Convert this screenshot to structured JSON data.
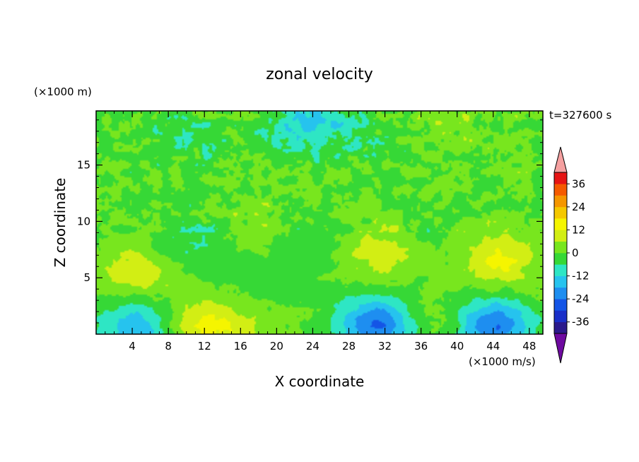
{
  "chart_data": {
    "type": "heatmap",
    "title": "zonal velocity",
    "xlabel": "X coordinate",
    "ylabel": "Z coordinate",
    "x_units": "(×1000 m/s)",
    "y_units": "(×1000 m)",
    "time_label": "t=327600 s",
    "xlim": [
      0,
      49.5
    ],
    "ylim": [
      0,
      19.8
    ],
    "x_ticks": [
      4,
      8,
      12,
      16,
      20,
      24,
      28,
      32,
      36,
      40,
      44,
      48
    ],
    "y_ticks": [
      5,
      10,
      15
    ],
    "colorbar": {
      "levels": [
        -42,
        -36,
        -30,
        -24,
        -18,
        -12,
        -6,
        0,
        6,
        12,
        18,
        24,
        30,
        36,
        42
      ],
      "tick_labels": [
        "36",
        "24",
        "12",
        "0",
        "-12",
        "-24",
        "-36"
      ],
      "tick_values": [
        36,
        24,
        12,
        0,
        -12,
        -24,
        -36
      ],
      "colors": [
        "#6e0aa0",
        "#2b1a8c",
        "#1a2fc8",
        "#1455e6",
        "#1e8ef0",
        "#26c3ee",
        "#2ee6c4",
        "#36d836",
        "#78e61e",
        "#d2ee14",
        "#f5f500",
        "#f5c800",
        "#f59600",
        "#f55a00",
        "#e61414",
        "#f5a0a0"
      ],
      "extend": "both"
    },
    "features": [
      {
        "x": 4.5,
        "z": 5.5,
        "value": 10
      },
      {
        "x": 11.5,
        "z": 0.6,
        "value": 12
      },
      {
        "x": 16,
        "z": 0.8,
        "value": 6
      },
      {
        "x": 4.5,
        "z": 0.5,
        "value": -18
      },
      {
        "x": 10.5,
        "z": 8.2,
        "value": -6
      },
      {
        "x": 18,
        "z": 9.5,
        "value": 5
      },
      {
        "x": 31.5,
        "z": 7.2,
        "value": 10
      },
      {
        "x": 44.5,
        "z": 6.5,
        "value": 13
      },
      {
        "x": 31,
        "z": 0.9,
        "value": -24
      },
      {
        "x": 44,
        "z": 0.8,
        "value": -24
      },
      {
        "x": 24,
        "z": 18.6,
        "value": -14
      },
      {
        "x": 38.5,
        "z": 1.0,
        "value": 5
      },
      {
        "x": 30,
        "z": 17.5,
        "value": -3
      },
      {
        "x": 40,
        "z": 18.8,
        "value": 4
      },
      {
        "x": 10,
        "z": 17.5,
        "value": -6
      },
      {
        "x": 23,
        "z": 8.5,
        "value": -5
      },
      {
        "x": 36,
        "z": 9,
        "value": -3
      },
      {
        "x": 17.5,
        "z": 4.5,
        "value": -4
      }
    ]
  }
}
